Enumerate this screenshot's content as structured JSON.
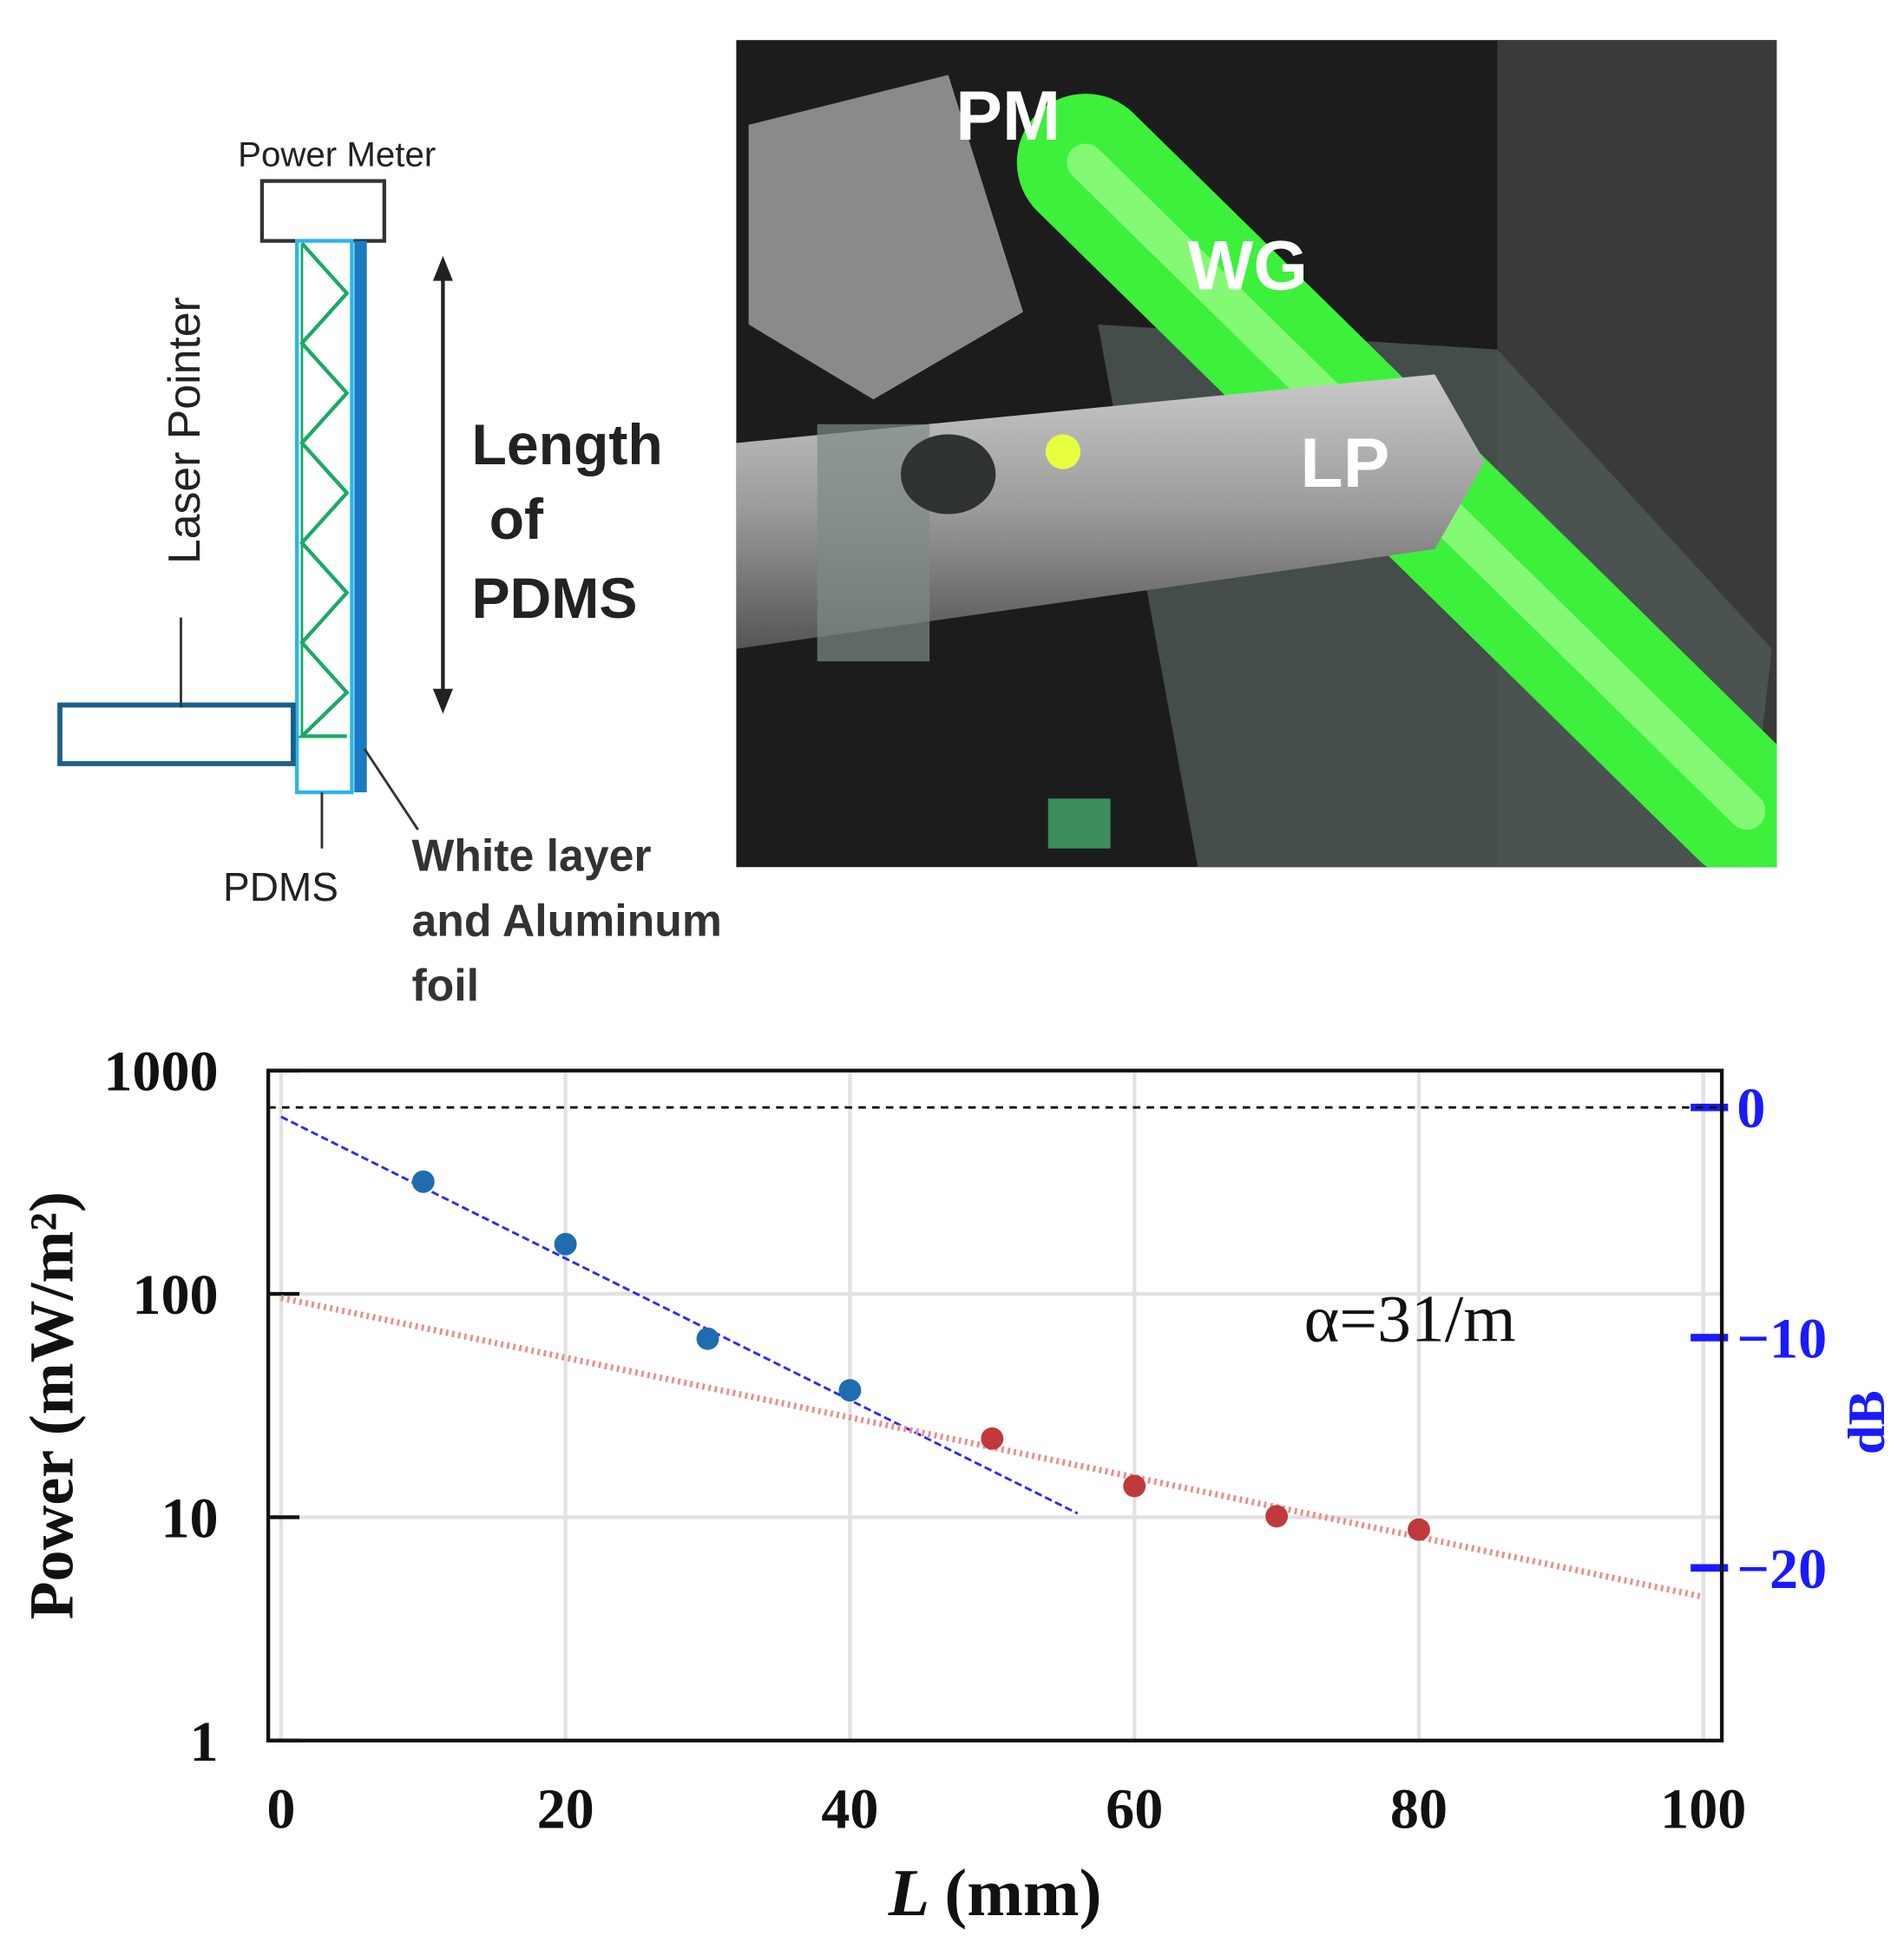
{
  "diagram": {
    "power_meter": "Power Meter",
    "laser_pointer": "Laser Pointer",
    "length_label": [
      "Length",
      "of",
      "PDMS"
    ],
    "pdms": "PDMS",
    "layer_label": [
      "White layer",
      "and Aluminum",
      "foil"
    ]
  },
  "photo": {
    "labels": [
      "PM",
      "WG",
      "LP"
    ]
  },
  "chart_data": {
    "type": "scatter",
    "xlim": [
      -0.9,
      101.3
    ],
    "xticks": [
      0,
      20,
      40,
      60,
      80,
      100
    ],
    "ylim": [
      1,
      1000
    ],
    "yticks": [
      1,
      10,
      100,
      1000
    ],
    "log_y": true,
    "y2lim": [
      -27.5,
      1.6
    ],
    "y2ticks": [
      0,
      {
        "value": -10,
        "label": "−10"
      },
      {
        "value": -20,
        "label": "−20"
      }
    ],
    "ylabel": "Power (mW/m²)",
    "xlabel_var": "L",
    "xlabel_unit": "(mm)",
    "y2label": "dB",
    "annotation": "α=31/m",
    "grid": true,
    "reference_y2": 0,
    "series": [
      {
        "color": "#1f6cb0",
        "x": [
          10,
          20,
          30,
          40
        ],
        "values": [
          318,
          167,
          63,
          37
        ]
      },
      {
        "color": "#c0393b",
        "x": [
          50,
          60,
          70,
          80
        ],
        "values": [
          22.5,
          13.8,
          10.1,
          8.8
        ]
      }
    ],
    "fits": [
      {
        "color": "#2a2aff",
        "style": "dashed",
        "x": [
          0,
          56
        ],
        "values": [
          621,
          10.4
        ]
      },
      {
        "color": "#e88f8f",
        "style": "dotted",
        "x": [
          0,
          100
        ],
        "values": [
          96,
          4.4
        ]
      }
    ]
  }
}
